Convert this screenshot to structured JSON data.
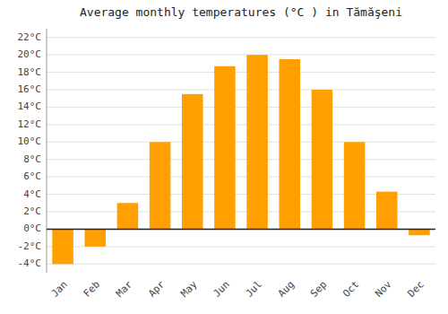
{
  "chart_data": {
    "type": "bar",
    "title": "Average monthly temperatures (°C ) in Tămăşeni",
    "categories": [
      "Jan",
      "Feb",
      "Mar",
      "Apr",
      "May",
      "Jun",
      "Jul",
      "Aug",
      "Sep",
      "Oct",
      "Nov",
      "Dec"
    ],
    "values": [
      -4,
      -2,
      3,
      10,
      15.5,
      18.7,
      20,
      19.5,
      16,
      10,
      4.3,
      -0.7
    ],
    "color": "#FFA000",
    "ylim": [
      -5,
      23
    ],
    "yticks": [
      {
        "value": -4,
        "label": "-4°C"
      },
      {
        "value": -2,
        "label": "-2°C"
      },
      {
        "value": 0,
        "label": "0°C"
      },
      {
        "value": 2,
        "label": "2°C"
      },
      {
        "value": 4,
        "label": "4°C"
      },
      {
        "value": 6,
        "label": "6°C"
      },
      {
        "value": 8,
        "label": "8°C"
      },
      {
        "value": 10,
        "label": "10°C"
      },
      {
        "value": 12,
        "label": "12°C"
      },
      {
        "value": 14,
        "label": "14°C"
      },
      {
        "value": 16,
        "label": "16°C"
      },
      {
        "value": 18,
        "label": "18°C"
      },
      {
        "value": 20,
        "label": "20°C"
      },
      {
        "value": 22,
        "label": "22°C"
      }
    ],
    "grid": true
  }
}
